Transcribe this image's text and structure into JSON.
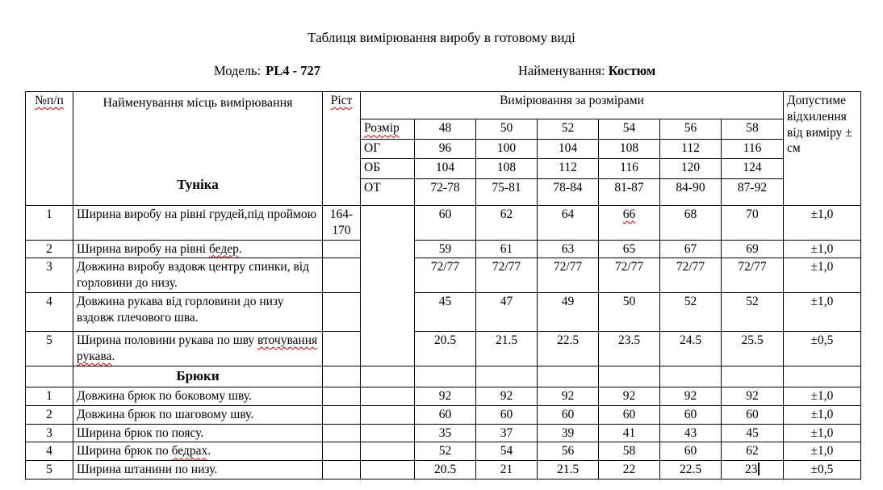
{
  "page": {
    "title": "Таблиця вимірювання виробу в готовому виді",
    "model_label": "Модель:",
    "model_value": "PL4 - 727",
    "name_label": "Найменування:",
    "name_value": "Костюм"
  },
  "colors": {
    "spellcheck_underline": "#c00000",
    "text": "#000000",
    "grid": "#000000"
  },
  "table": {
    "headers": {
      "num": "[[№п/п]]",
      "place": "Найменування місць вимірювання",
      "rist": "[[Ріст]]",
      "measurements": "Вимірювання за розмірами",
      "tolerance": "Допустиме відхилення від виміру ± см"
    },
    "size_rows": [
      {
        "label": "[[Розмір]]",
        "values": [
          "48",
          "50",
          "52",
          "54",
          "56",
          "58"
        ]
      },
      {
        "label": "ОГ",
        "values": [
          "96",
          "100",
          "104",
          "108",
          "112",
          "116"
        ]
      },
      {
        "label": "ОБ",
        "values": [
          "104",
          "108",
          "112",
          "116",
          "120",
          "124"
        ]
      },
      {
        "label": "ОТ",
        "values": [
          "72-78",
          "75-81",
          "78-84",
          "81-87",
          "84-90",
          "87-92"
        ]
      }
    ],
    "sections": [
      {
        "name": "Туніка",
        "rows": [
          {
            "num": "1",
            "place": "Ширина виробу на рівні грудей,під проймою",
            "rist": "164-170",
            "values": [
              "60",
              "62",
              "64",
              "[[66]]",
              "68",
              "70"
            ],
            "tol": "±1,0"
          },
          {
            "num": "2",
            "place": "Ширина виробу на рівні [[бедер]].",
            "rist": "",
            "values": [
              "59",
              "61",
              "63",
              "65",
              "67",
              "69"
            ],
            "tol": "±1,0"
          },
          {
            "num": "3",
            "place": "Довжина виробу вздовж центру спинки, від горловини до низу.",
            "rist": "",
            "values": [
              "72/77",
              "72/77",
              "72/77",
              "72/77",
              "72/77",
              "72/77"
            ],
            "tol": "±1,0"
          },
          {
            "num": "4",
            "place": "Довжина рукава від горловини до низу вздовж плечового шва.",
            "rist": "",
            "values": [
              "45",
              "47",
              "49",
              "50",
              "52",
              "52"
            ],
            "tol": "±1,0"
          },
          {
            "num": "5",
            "place": "Ширина половини рукава по шву [[вточування рукава]].",
            "rist": "",
            "values": [
              "20.5",
              "21.5",
              "22.5",
              "23.5",
              "24.5",
              "25.5"
            ],
            "tol": "±0,5"
          }
        ]
      },
      {
        "name": "Брюки",
        "rows": [
          {
            "num": "1",
            "place": "Довжина брюк по боковому шву.",
            "rist": "",
            "values": [
              "92",
              "92",
              "92",
              "92",
              "92",
              "92"
            ],
            "tol": "±1,0"
          },
          {
            "num": "2",
            "place": "Довжина брюк по шаговому шву.",
            "rist": "",
            "values": [
              "60",
              "60",
              "60",
              "60",
              "60",
              "60"
            ],
            "tol": "±1,0"
          },
          {
            "num": "3",
            "place": "Ширина брюк по поясу.",
            "rist": "",
            "values": [
              "35",
              "37",
              "39",
              "41",
              "43",
              "45"
            ],
            "tol": "±1,0"
          },
          {
            "num": "4",
            "place": "Ширина брюк по [[бедрах]].",
            "rist": "",
            "values": [
              "52",
              "54",
              "56",
              "58",
              "60",
              "62"
            ],
            "tol": "±1,0"
          },
          {
            "num": "5",
            "place": "Ширина штанини по низу.",
            "rist": "",
            "values": [
              "20.5",
              "21",
              "21.5",
              "22",
              "22.5",
              "23"
            ],
            "tol": "±0,5"
          }
        ]
      }
    ]
  }
}
